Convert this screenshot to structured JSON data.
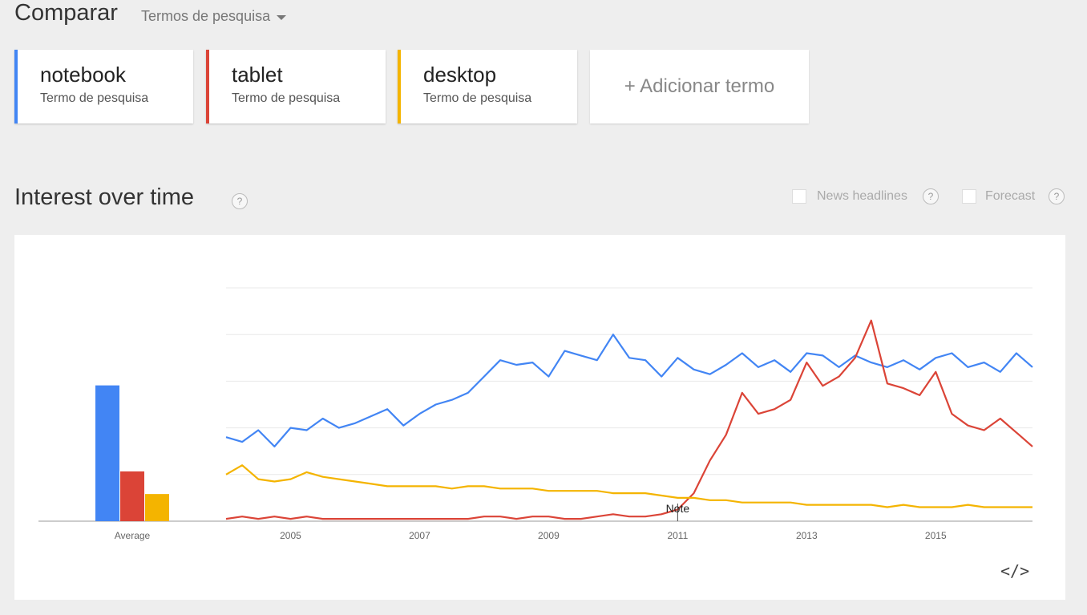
{
  "header": {
    "compare_title": "Comparar",
    "dropdown_label": "Termos de pesquisa"
  },
  "terms": [
    {
      "name": "notebook",
      "type": "Termo de pesquisa",
      "color": "#4285f4"
    },
    {
      "name": "tablet",
      "type": "Termo de pesquisa",
      "color": "#db4437"
    },
    {
      "name": "desktop",
      "type": "Termo de pesquisa",
      "color": "#f4b400"
    }
  ],
  "add_term": {
    "label": "+ Adicionar termo"
  },
  "section": {
    "title": "Interest over time",
    "help": "?"
  },
  "options": {
    "news_headlines": "News headlines",
    "forecast": "Forecast",
    "help": "?"
  },
  "embed_icon": "code-embed-icon",
  "chart_data": [
    {
      "type": "bar",
      "categories": [
        "Average"
      ],
      "series": [
        {
          "name": "notebook",
          "values": [
            60
          ],
          "color": "#4285f4"
        },
        {
          "name": "tablet",
          "values": [
            22
          ],
          "color": "#db4437"
        },
        {
          "name": "desktop",
          "values": [
            12
          ],
          "color": "#f4b400"
        }
      ],
      "ylim": [
        0,
        100
      ]
    },
    {
      "type": "line",
      "xlim": [
        2004.0,
        2016.5
      ],
      "ylim": [
        0,
        100
      ],
      "x_tick_labels": [
        "2005",
        "2007",
        "2009",
        "2011",
        "2013",
        "2015"
      ],
      "x_ticks": [
        2005,
        2007,
        2009,
        2011,
        2013,
        2015
      ],
      "grid": true,
      "annotations": [
        {
          "text": "Note",
          "x": 2011.0
        }
      ],
      "series": [
        {
          "name": "notebook",
          "color": "#4285f4",
          "x": [
            2004.0,
            2004.25,
            2004.5,
            2004.75,
            2005.0,
            2005.25,
            2005.5,
            2005.75,
            2006.0,
            2006.25,
            2006.5,
            2006.75,
            2007.0,
            2007.25,
            2007.5,
            2007.75,
            2008.0,
            2008.25,
            2008.5,
            2008.75,
            2009.0,
            2009.25,
            2009.5,
            2009.75,
            2010.0,
            2010.25,
            2010.5,
            2010.75,
            2011.0,
            2011.25,
            2011.5,
            2011.75,
            2012.0,
            2012.25,
            2012.5,
            2012.75,
            2013.0,
            2013.25,
            2013.5,
            2013.75,
            2014.0,
            2014.25,
            2014.5,
            2014.75,
            2015.0,
            2015.25,
            2015.5,
            2015.75,
            2016.0,
            2016.25,
            2016.5
          ],
          "y": [
            36,
            34,
            39,
            32,
            40,
            39,
            44,
            40,
            42,
            45,
            48,
            41,
            46,
            50,
            52,
            55,
            62,
            69,
            67,
            68,
            62,
            73,
            71,
            69,
            80,
            70,
            69,
            62,
            70,
            65,
            63,
            67,
            72,
            66,
            69,
            64,
            72,
            71,
            66,
            71,
            68,
            66,
            69,
            65,
            70,
            72,
            66,
            68,
            64,
            72,
            66
          ]
        },
        {
          "name": "tablet",
          "color": "#db4437",
          "x": [
            2004.0,
            2004.25,
            2004.5,
            2004.75,
            2005.0,
            2005.25,
            2005.5,
            2005.75,
            2006.0,
            2006.25,
            2006.5,
            2006.75,
            2007.0,
            2007.25,
            2007.5,
            2007.75,
            2008.0,
            2008.25,
            2008.5,
            2008.75,
            2009.0,
            2009.25,
            2009.5,
            2009.75,
            2010.0,
            2010.25,
            2010.5,
            2010.75,
            2011.0,
            2011.25,
            2011.5,
            2011.75,
            2012.0,
            2012.25,
            2012.5,
            2012.75,
            2013.0,
            2013.25,
            2013.5,
            2013.75,
            2014.0,
            2014.25,
            2014.5,
            2014.75,
            2015.0,
            2015.25,
            2015.5,
            2015.75,
            2016.0,
            2016.25,
            2016.5
          ],
          "y": [
            1,
            2,
            1,
            2,
            1,
            2,
            1,
            1,
            1,
            1,
            1,
            1,
            1,
            1,
            1,
            1,
            2,
            2,
            1,
            2,
            2,
            1,
            1,
            2,
            3,
            2,
            2,
            3,
            5,
            12,
            26,
            37,
            55,
            46,
            48,
            52,
            68,
            58,
            62,
            70,
            86,
            59,
            57,
            54,
            64,
            46,
            41,
            39,
            44,
            38,
            32
          ]
        },
        {
          "name": "desktop",
          "color": "#f4b400",
          "x": [
            2004.0,
            2004.25,
            2004.5,
            2004.75,
            2005.0,
            2005.25,
            2005.5,
            2005.75,
            2006.0,
            2006.25,
            2006.5,
            2006.75,
            2007.0,
            2007.25,
            2007.5,
            2007.75,
            2008.0,
            2008.25,
            2008.5,
            2008.75,
            2009.0,
            2009.25,
            2009.5,
            2009.75,
            2010.0,
            2010.25,
            2010.5,
            2010.75,
            2011.0,
            2011.25,
            2011.5,
            2011.75,
            2012.0,
            2012.25,
            2012.5,
            2012.75,
            2013.0,
            2013.25,
            2013.5,
            2013.75,
            2014.0,
            2014.25,
            2014.5,
            2014.75,
            2015.0,
            2015.25,
            2015.5,
            2015.75,
            2016.0,
            2016.25,
            2016.5
          ],
          "y": [
            20,
            24,
            18,
            17,
            18,
            21,
            19,
            18,
            17,
            16,
            15,
            15,
            15,
            15,
            14,
            15,
            15,
            14,
            14,
            14,
            13,
            13,
            13,
            13,
            12,
            12,
            12,
            11,
            10,
            10,
            9,
            9,
            8,
            8,
            8,
            8,
            7,
            7,
            7,
            7,
            7,
            6,
            7,
            6,
            6,
            6,
            7,
            6,
            6,
            6,
            6
          ]
        }
      ]
    }
  ]
}
